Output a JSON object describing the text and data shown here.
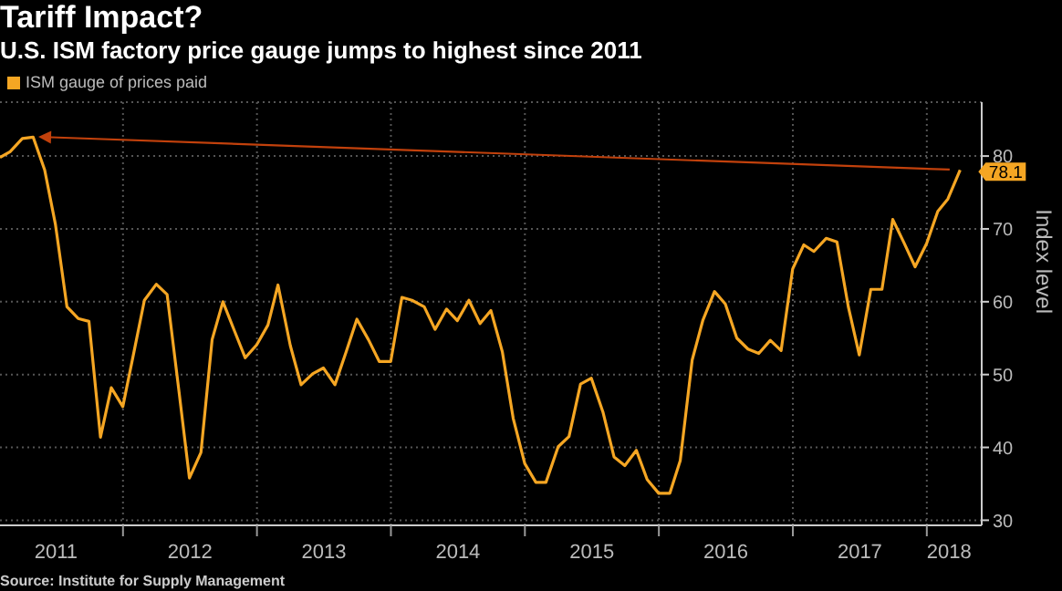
{
  "chart_data": {
    "type": "line",
    "title": "Tariff Impact?",
    "subtitle": "U.S. ISM factory price gauge jumps to highest since 2011",
    "ylabel": "Index level",
    "annotations": [
      "Source: Institute for Supply Management"
    ],
    "x": [
      "2011-01-31",
      "2011-02-28",
      "2011-03-31",
      "2011-04-30",
      "2011-05-31",
      "2011-06-30",
      "2011-07-31",
      "2011-08-31",
      "2011-09-30",
      "2011-10-31",
      "2011-11-30",
      "2011-12-31",
      "2012-01-31",
      "2012-02-29",
      "2012-03-31",
      "2012-04-30",
      "2012-05-31",
      "2012-06-30",
      "2012-07-31",
      "2012-08-31",
      "2012-09-30",
      "2012-10-31",
      "2012-11-30",
      "2012-12-31",
      "2013-01-31",
      "2013-02-28",
      "2013-03-31",
      "2013-04-30",
      "2013-05-31",
      "2013-06-30",
      "2013-07-31",
      "2013-08-31",
      "2013-09-30",
      "2013-10-31",
      "2013-11-30",
      "2013-12-31",
      "2014-01-31",
      "2014-02-28",
      "2014-03-31",
      "2014-04-30",
      "2014-05-31",
      "2014-06-30",
      "2014-07-31",
      "2014-08-31",
      "2014-09-30",
      "2014-10-31",
      "2014-11-30",
      "2014-12-31",
      "2015-01-31",
      "2015-02-28",
      "2015-03-31",
      "2015-04-30",
      "2015-05-31",
      "2015-06-30",
      "2015-07-31",
      "2015-08-31",
      "2015-09-30",
      "2015-10-31",
      "2015-11-30",
      "2015-12-31",
      "2016-01-31",
      "2016-02-29",
      "2016-03-31",
      "2016-04-30",
      "2016-05-31",
      "2016-06-30",
      "2016-07-31",
      "2016-08-31",
      "2016-09-30",
      "2016-10-31",
      "2016-11-30",
      "2016-12-31",
      "2017-01-31",
      "2017-02-28",
      "2017-03-31",
      "2017-04-30",
      "2017-05-31",
      "2017-06-30",
      "2017-07-31",
      "2017-08-31",
      "2017-09-30",
      "2017-10-31",
      "2017-11-30",
      "2017-12-31",
      "2018-01-31",
      "2018-02-28",
      "2018-03-31"
    ],
    "series": [
      {
        "name": "ISM gauge of prices paid",
        "color": "#f5a623",
        "values": [
          79.8,
          80.6,
          82.4,
          82.6,
          78.1,
          70.6,
          59.3,
          57.7,
          57.3,
          41.4,
          48.2,
          45.6,
          53.1,
          60.2,
          62.4,
          61.0,
          48.1,
          35.8,
          39.3,
          54.8,
          60.0,
          56.0,
          52.3,
          54.1,
          56.8,
          62.3,
          54.0,
          48.6,
          50.1,
          50.9,
          48.6,
          53.1,
          57.6,
          54.8,
          51.8,
          51.8,
          60.6,
          60.2,
          59.3,
          56.2,
          59.0,
          57.4,
          60.2,
          57.0,
          58.8,
          53.1,
          44.0,
          37.8,
          35.2,
          35.2,
          40.1,
          41.5,
          48.7,
          49.5,
          44.9,
          38.7,
          37.5,
          39.6,
          35.6,
          33.7,
          33.7,
          38.2,
          52.0,
          57.5,
          61.4,
          59.7,
          55.0,
          53.5,
          52.9,
          54.7,
          53.3,
          64.5,
          67.8,
          66.9,
          68.7,
          68.2,
          59.2,
          52.7,
          61.7,
          61.7,
          71.3,
          68.0,
          64.8,
          68.0,
          72.4,
          74.1,
          78.1
        ],
        "value_labels": [
          null,
          null,
          null,
          null,
          null,
          null,
          null,
          null,
          null,
          null,
          null,
          null,
          null,
          null,
          null,
          null,
          null,
          null,
          null,
          null,
          null,
          null,
          null,
          null,
          null,
          null,
          null,
          null,
          null,
          null,
          null,
          null,
          null,
          null,
          null,
          null,
          null,
          null,
          null,
          null,
          null,
          null,
          null,
          null,
          null,
          null,
          null,
          null,
          null,
          null,
          null,
          null,
          null,
          null,
          null,
          null,
          null,
          null,
          null,
          null,
          null,
          null,
          null,
          null,
          null,
          null,
          null,
          null,
          null,
          null,
          null,
          null,
          null,
          null,
          null,
          null,
          null,
          null,
          null,
          null,
          null,
          null,
          null,
          null,
          null,
          null,
          "78.1"
        ]
      }
    ],
    "xlim": [
      "2011-01-31",
      "2018-05-29"
    ],
    "xticks": [
      {
        "value": "2011-07-01",
        "label": "2011"
      },
      {
        "value": "2012-01-01",
        "label": null
      },
      {
        "value": "2012-07-01",
        "label": "2012"
      },
      {
        "value": "2013-01-01",
        "label": null
      },
      {
        "value": "2013-07-01",
        "label": "2013"
      },
      {
        "value": "2014-01-01",
        "label": null
      },
      {
        "value": "2014-07-01",
        "label": "2014"
      },
      {
        "value": "2015-01-01",
        "label": null
      },
      {
        "value": "2015-07-01",
        "label": "2015"
      },
      {
        "value": "2016-01-01",
        "label": null
      },
      {
        "value": "2016-07-01",
        "label": "2016"
      },
      {
        "value": "2017-01-01",
        "label": null
      },
      {
        "value": "2017-07-01",
        "label": "2017"
      },
      {
        "value": "2018-01-01",
        "label": null
      },
      {
        "value": "2018-03-01",
        "label": "2018"
      }
    ],
    "ylim": [
      29.3,
      87.4
    ],
    "yticks": [
      30,
      40,
      50,
      60,
      70,
      80
    ],
    "grid": true,
    "legend": "top left",
    "marker": "none",
    "line_style": "solid"
  }
}
